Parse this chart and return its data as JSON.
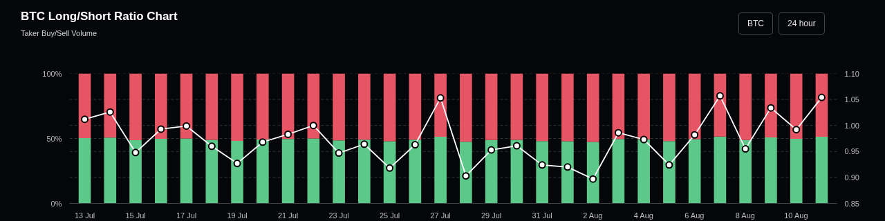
{
  "chart_data": {
    "type": "bar",
    "title": "BTC Long/Short Ratio Chart",
    "subtitle": "Taker Buy/Sell Volume",
    "stacked": true,
    "categories": [
      "13 Jul",
      null,
      "15 Jul",
      null,
      "17 Jul",
      null,
      "19 Jul",
      null,
      "21 Jul",
      null,
      "23 Jul",
      null,
      "25 Jul",
      null,
      "27 Jul",
      null,
      "29 Jul",
      null,
      "31 Jul",
      null,
      "2 Aug",
      null,
      "4 Aug",
      null,
      "6 Aug",
      null,
      "8 Aug",
      null,
      "10 Aug",
      null
    ],
    "series": [
      {
        "color": "#5cc98a",
        "values": [
          50.3,
          50.6,
          48.7,
          49.8,
          50.0,
          49.0,
          48.1,
          49.2,
          49.6,
          50.0,
          48.6,
          49.1,
          47.9,
          49.1,
          51.3,
          47.5,
          48.8,
          49.0,
          48.0,
          47.9,
          47.3,
          49.6,
          49.3,
          48.0,
          49.5,
          51.4,
          48.8,
          50.8,
          49.8,
          51.3
        ]
      },
      {
        "color": "#e55563",
        "values": [
          49.7,
          49.4,
          51.3,
          50.2,
          50.0,
          51.0,
          51.9,
          50.8,
          50.4,
          50.0,
          51.4,
          50.9,
          52.1,
          50.9,
          48.7,
          52.5,
          51.2,
          51.0,
          52.0,
          52.1,
          52.7,
          50.4,
          50.7,
          52.0,
          50.5,
          48.6,
          51.2,
          49.2,
          50.2,
          48.7
        ]
      },
      {
        "type": "line",
        "axis": "y2",
        "color": "#ffffff",
        "marker": "circle",
        "values": [
          1.012,
          1.026,
          0.948,
          0.993,
          0.999,
          0.96,
          0.927,
          0.968,
          0.983,
          1.0,
          0.947,
          0.964,
          0.918,
          0.963,
          1.053,
          0.903,
          0.953,
          0.961,
          0.924,
          0.92,
          0.897,
          0.986,
          0.973,
          0.924,
          0.982,
          1.057,
          0.955,
          1.034,
          0.992,
          1.054
        ]
      }
    ],
    "ylim": [
      0,
      100
    ],
    "yticks": [
      {
        "value": 0,
        "label": "0%"
      },
      {
        "value": 50,
        "label": "50%"
      },
      {
        "value": 100,
        "label": "100%"
      }
    ],
    "y2lim": [
      0.85,
      1.1
    ],
    "y2ticks": [
      {
        "value": 0.85,
        "label": "0.85"
      },
      {
        "value": 0.9,
        "label": "0.90"
      },
      {
        "value": 0.95,
        "label": "0.95"
      },
      {
        "value": 1.0,
        "label": "1.00"
      },
      {
        "value": 1.05,
        "label": "1.05"
      },
      {
        "value": 1.1,
        "label": "1.10"
      }
    ],
    "grid": "y",
    "annotations": [
      "BTC",
      "24 hour"
    ]
  }
}
